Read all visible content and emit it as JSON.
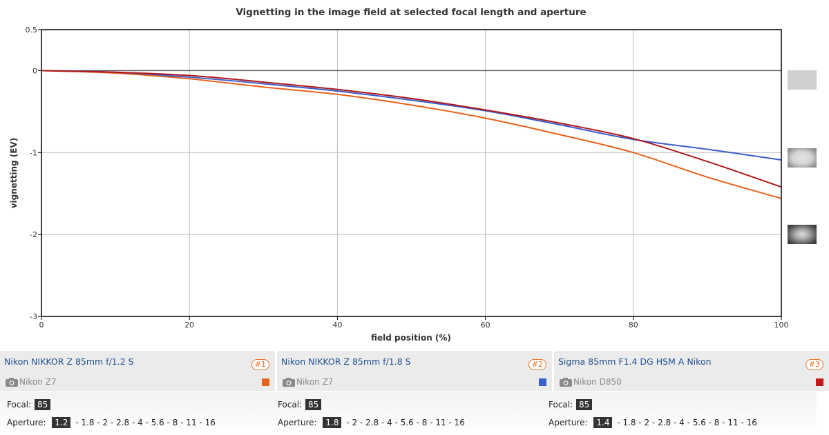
{
  "chart_data": {
    "type": "line",
    "title": "Vignetting in the image field at selected focal length and aperture",
    "xlabel": "field position (%)",
    "ylabel": "vignetting (EV)",
    "xlim": [
      0,
      100
    ],
    "ylim": [
      -3,
      0.5
    ],
    "xticks": [
      0,
      20,
      40,
      60,
      80,
      100
    ],
    "yticks": [
      0.5,
      0,
      -1,
      -2,
      -3
    ],
    "ytick_labels": [
      "0.5",
      "0",
      "-1",
      "-2",
      "-3"
    ],
    "grid": true,
    "series": [
      {
        "color": "#e8611a",
        "x": [
          0,
          10,
          20,
          30,
          40,
          50,
          60,
          70,
          80,
          90,
          100
        ],
        "y": [
          0,
          -0.03,
          -0.1,
          -0.2,
          -0.29,
          -0.42,
          -0.58,
          -0.78,
          -1.0,
          -1.3,
          -1.56
        ]
      },
      {
        "color": "#3a5fcd",
        "x": [
          0,
          10,
          20,
          30,
          40,
          50,
          60,
          70,
          80,
          90,
          100
        ],
        "y": [
          0,
          -0.02,
          -0.08,
          -0.16,
          -0.25,
          -0.36,
          -0.49,
          -0.66,
          -0.84,
          -0.96,
          -1.09
        ]
      },
      {
        "color": "#b01717",
        "x": [
          0,
          10,
          20,
          30,
          40,
          50,
          60,
          70,
          80,
          90,
          100
        ],
        "y": [
          0,
          -0.02,
          -0.06,
          -0.14,
          -0.23,
          -0.34,
          -0.48,
          -0.64,
          -0.83,
          -1.11,
          -1.42
        ]
      }
    ]
  },
  "panels": [
    {
      "lens": "Nikon NIKKOR Z 85mm f/1.2 S",
      "badge": "#1",
      "camera": "Nikon Z7",
      "color": "#e8611a",
      "focal_label": "Focal:",
      "focal": "85",
      "aperture_label": "Aperture:",
      "aperture": "1.2",
      "aperture_list": "- 1.8 - 2 - 2.8 - 4 - 5.6 - 8 - 11 - 16"
    },
    {
      "lens": "Nikon NIKKOR Z 85mm f/1.8 S",
      "badge": "#2",
      "camera": "Nikon Z7",
      "color": "#3a5fcd",
      "focal_label": "Focal:",
      "focal": "85",
      "aperture_label": "Aperture:",
      "aperture": "1.8",
      "aperture_list": "- 2 - 2.8 - 4 - 5.6 - 8 - 11 - 16"
    },
    {
      "lens": "Sigma 85mm F1.4 DG HSM A Nikon",
      "badge": "#3",
      "camera": "Nikon D850",
      "color": "#c41a1a",
      "focal_label": "Focal:",
      "focal": "85",
      "aperture_label": "Aperture:",
      "aperture": "1.4",
      "aperture_list": "- 1.8 - 2 - 2.8 - 4 - 5.6 - 8 - 11 - 16"
    }
  ]
}
